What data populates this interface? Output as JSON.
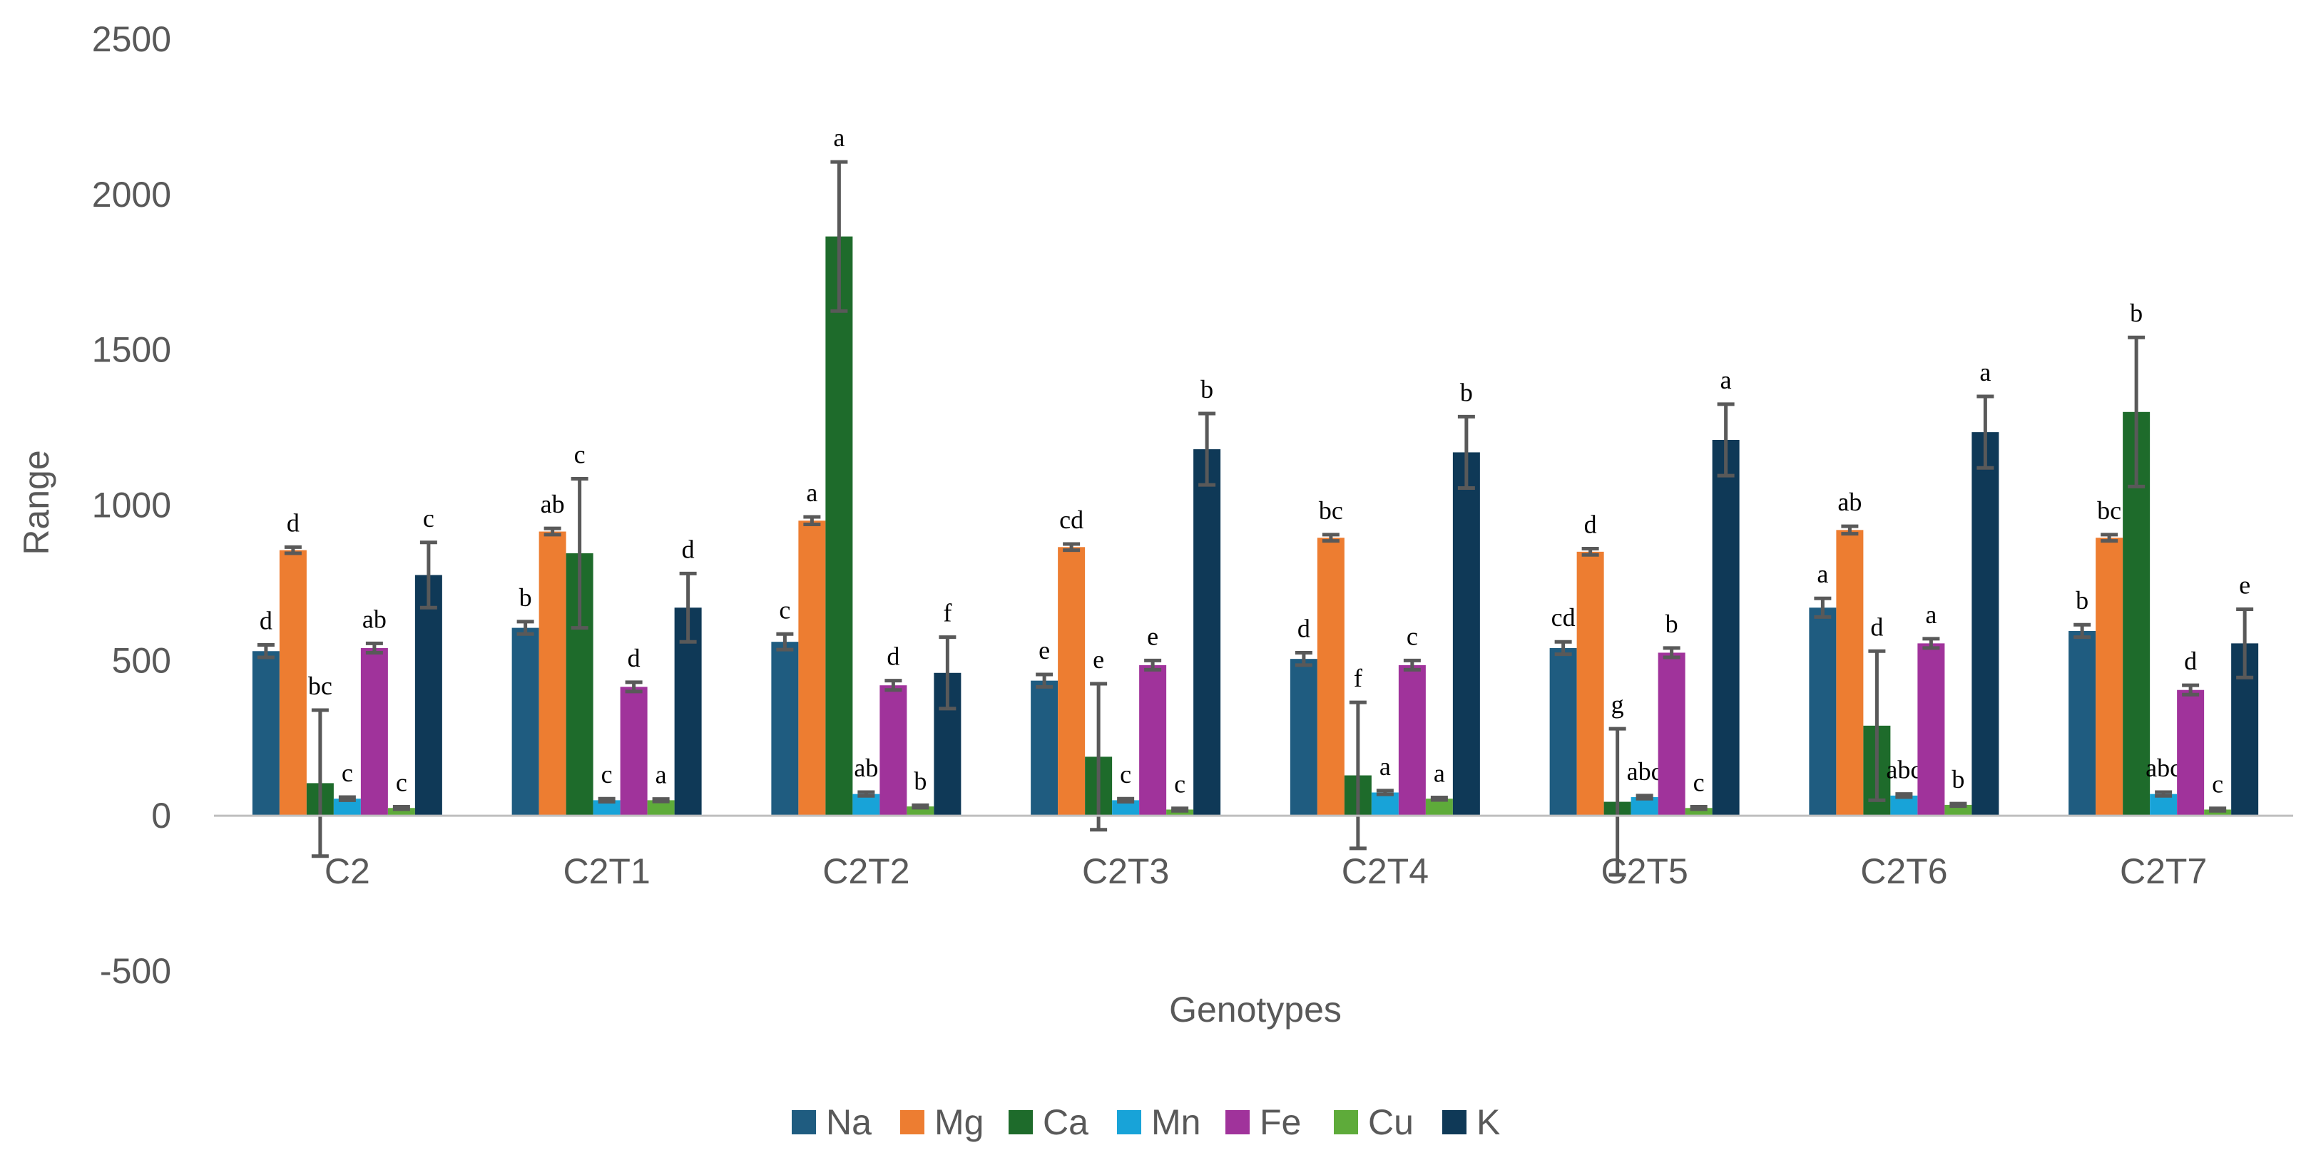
{
  "chart_data": {
    "type": "bar",
    "title": "",
    "xlabel": "Genotypes",
    "ylabel": "Range",
    "ylim": [
      -500,
      2500
    ],
    "yticks": [
      -500,
      0,
      500,
      1000,
      1500,
      2000,
      2500
    ],
    "ytick_labels": [
      "-500",
      "0",
      "500",
      "1000",
      "1500",
      "2000",
      "2500"
    ],
    "grid": false,
    "legend_position": "bottom",
    "categories": [
      "C2",
      "C2T1",
      "C2T2",
      "C2T3",
      "C2T4",
      "C2T5",
      "C2T6",
      "C2T7"
    ],
    "series": [
      {
        "name": "Na",
        "color": "#1f5c80",
        "values": [
          530,
          605,
          560,
          435,
          505,
          540,
          670,
          595
        ],
        "errors": [
          20,
          20,
          25,
          20,
          20,
          20,
          30,
          20
        ],
        "letters": [
          "d",
          "b",
          "c",
          "e",
          "d",
          "cd",
          "a",
          "b"
        ]
      },
      {
        "name": "Mg",
        "color": "#ed7d31",
        "values": [
          855,
          915,
          950,
          865,
          895,
          850,
          920,
          895
        ],
        "errors": [
          10,
          10,
          12,
          10,
          10,
          10,
          12,
          10
        ],
        "letters": [
          "d",
          "ab",
          "a",
          "cd",
          "bc",
          "d",
          "ab",
          "bc"
        ]
      },
      {
        "name": "Ca",
        "color": "#1e6b2b",
        "values": [
          105,
          845,
          1865,
          190,
          130,
          45,
          290,
          1300
        ],
        "errors": [
          235,
          240,
          240,
          235,
          235,
          235,
          240,
          240
        ],
        "letters": [
          "bc",
          "c",
          "a",
          "e",
          "f",
          "g",
          "d",
          "b"
        ]
      },
      {
        "name": "Mn",
        "color": "#18a3d8",
        "values": [
          55,
          50,
          70,
          50,
          75,
          60,
          65,
          70
        ],
        "errors": [
          5,
          5,
          6,
          5,
          6,
          5,
          5,
          6
        ],
        "letters": [
          "c",
          "c",
          "ab",
          "c",
          "a",
          "abc",
          "abc",
          "abc"
        ]
      },
      {
        "name": "Fe",
        "color": "#a0339b",
        "values": [
          540,
          415,
          420,
          485,
          485,
          525,
          555,
          405
        ],
        "errors": [
          15,
          15,
          15,
          15,
          15,
          15,
          15,
          15
        ],
        "letters": [
          "ab",
          "d",
          "d",
          "e",
          "c",
          "b",
          "a",
          "d"
        ]
      },
      {
        "name": "Cu",
        "color": "#5eab3a",
        "values": [
          25,
          50,
          30,
          20,
          55,
          25,
          35,
          20
        ],
        "errors": [
          4,
          4,
          4,
          4,
          4,
          4,
          4,
          4
        ],
        "letters": [
          "c",
          "a",
          "b",
          "c",
          "a",
          "c",
          "b",
          "c"
        ]
      },
      {
        "name": "K",
        "color": "#0f3957",
        "values": [
          775,
          670,
          460,
          1180,
          1170,
          1210,
          1235,
          555
        ],
        "errors": [
          105,
          110,
          115,
          115,
          115,
          115,
          115,
          110
        ],
        "letters": [
          "c",
          "d",
          "f",
          "b",
          "b",
          "a",
          "a",
          "e"
        ]
      }
    ]
  }
}
